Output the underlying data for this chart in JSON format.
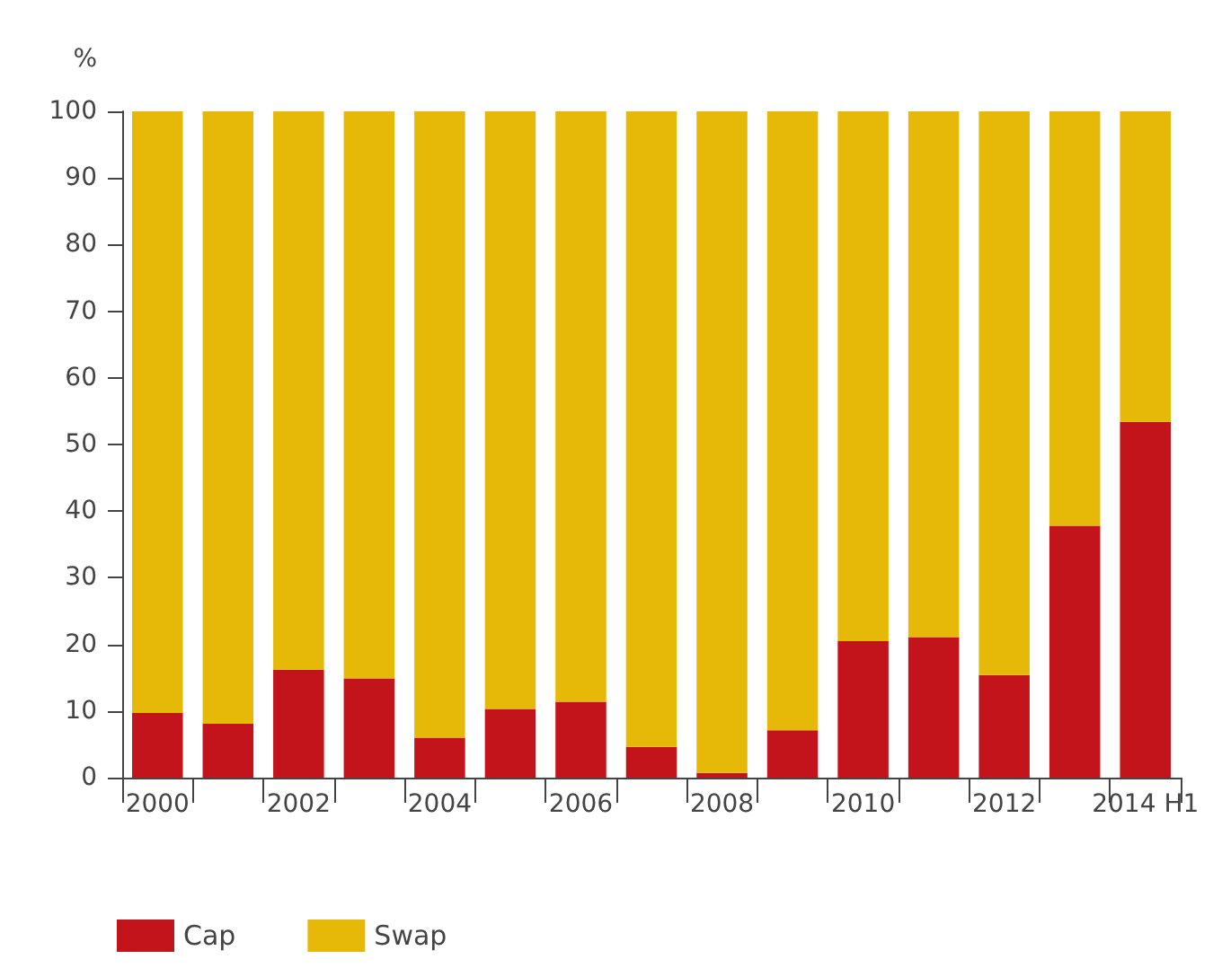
{
  "chart_data": {
    "type": "bar",
    "stacked": true,
    "ylabel": "%",
    "categories": [
      "2000",
      null,
      "2002",
      null,
      "2004",
      null,
      "2006",
      null,
      "2008",
      null,
      "2010",
      null,
      "2012",
      null,
      "2014 H1"
    ],
    "series": [
      {
        "name": "Cap",
        "color": "#c3141c",
        "values": [
          9.7,
          8.1,
          16.2,
          14.9,
          6.0,
          10.3,
          11.4,
          4.6,
          0.7,
          7.1,
          20.5,
          21.1,
          15.4,
          37.8,
          53.4
        ]
      },
      {
        "name": "Swap",
        "color": "#e6b808",
        "values": [
          90.3,
          91.9,
          83.8,
          85.1,
          94.0,
          89.7,
          88.6,
          95.4,
          99.3,
          92.9,
          79.5,
          78.9,
          84.6,
          62.2,
          46.6
        ]
      }
    ],
    "ylim": [
      0,
      100
    ],
    "yticks": [
      0,
      10,
      20,
      30,
      40,
      50,
      60,
      70,
      80,
      90,
      100
    ],
    "grid": false,
    "legend": "bottom left"
  }
}
